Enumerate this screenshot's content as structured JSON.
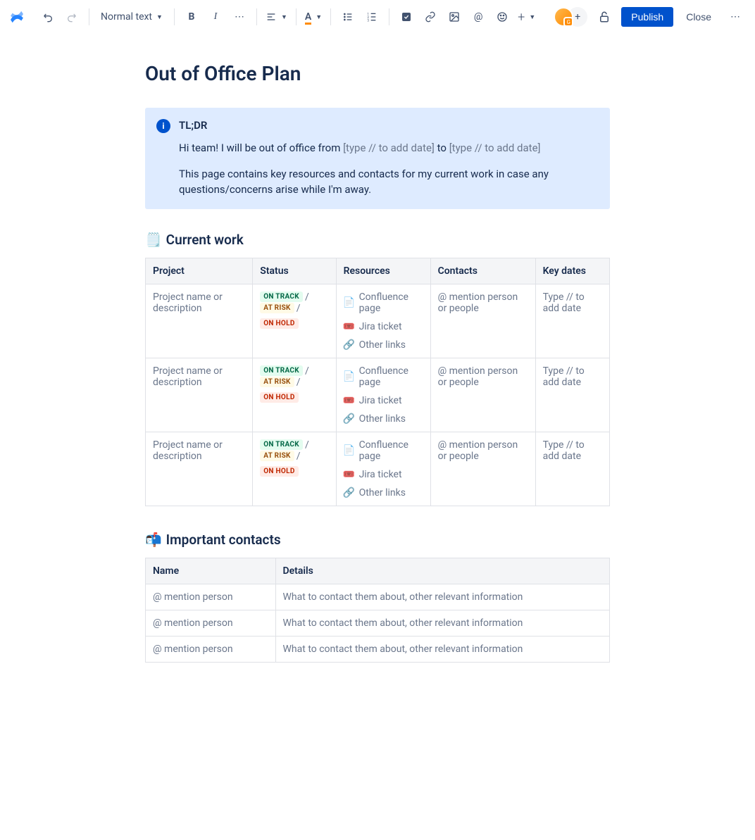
{
  "toolbar": {
    "text_style": "Normal text",
    "publish": "Publish",
    "close": "Close"
  },
  "page": {
    "title": "Out of Office Plan"
  },
  "info_panel": {
    "title": "TL;DR",
    "line1_prefix": "Hi team! I will be out of office from ",
    "line1_ph1": "[type // to add date]",
    "line1_mid": " to ",
    "line1_ph2": "[type // to add date]",
    "line2": "This page contains key resources and contacts for my current work in case any questions/concerns arise while I'm away."
  },
  "sections": {
    "current_work": "Current work",
    "important_contacts": "Important contacts"
  },
  "work_table": {
    "headers": {
      "project": "Project",
      "status": "Status",
      "resources": "Resources",
      "contacts": "Contacts",
      "key_dates": "Key dates"
    },
    "status_labels": {
      "on_track": "ON TRACK",
      "at_risk": "AT RISK",
      "on_hold": "ON HOLD"
    },
    "resource_labels": {
      "confluence": "Confluence page",
      "jira": "Jira ticket",
      "other": "Other links"
    },
    "placeholders": {
      "project": "Project name or description",
      "contacts": "@ mention person or people",
      "key_dates": "Type // to add date"
    }
  },
  "contacts_table": {
    "headers": {
      "name": "Name",
      "details": "Details"
    },
    "placeholders": {
      "name": "@ mention person",
      "details": "What to contact them about, other relevant information"
    }
  }
}
